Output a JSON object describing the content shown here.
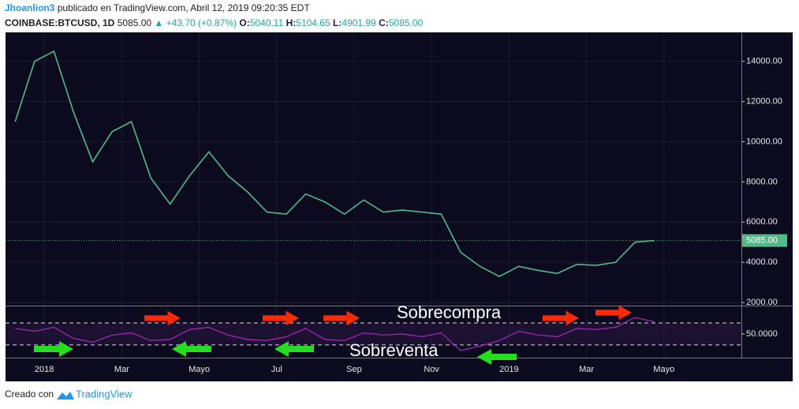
{
  "header": {
    "author": "Jhoanlion3",
    "published": "publicado en TradingView.com, Abril 12, 2019 09:20:35 EDT",
    "symbol": "COINBASE:BTCUSD, 1D",
    "price": "5085.00",
    "change": "+43.70 (+0.87%)",
    "ohlc": [
      {
        "label": "O:",
        "value": "5040.11"
      },
      {
        "label": "H:",
        "value": "5104.65"
      },
      {
        "label": "L:",
        "value": "4901.99"
      },
      {
        "label": "C:",
        "value": "5085.00"
      }
    ]
  },
  "annotations": [
    "Sobrecompra",
    "Sobreventa"
  ],
  "footer": {
    "text": "Creado con",
    "brand": "TradingView"
  },
  "chart_data": {
    "type": "line",
    "categories": [
      null,
      null,
      "2018",
      null,
      null,
      null,
      "Mar",
      null,
      null,
      null,
      "Mayo",
      null,
      null,
      null,
      "Jul",
      null,
      null,
      null,
      "Sep",
      null,
      null,
      null,
      "Nov",
      null,
      null,
      null,
      "2019",
      null,
      null,
      null,
      "Mar",
      null,
      null,
      null,
      "Mayo",
      null,
      null,
      null
    ],
    "series": [
      {
        "color": "#53b987",
        "values": [
          11000,
          14000,
          14500,
          11500,
          9000,
          10500,
          11000,
          8200,
          6900,
          8300,
          9500,
          8300,
          7500,
          6500,
          6400,
          7400,
          7000,
          6400,
          7100,
          6500,
          6600,
          6500,
          6400,
          4500,
          3800,
          3300,
          3800,
          3600,
          3450,
          3900,
          3850,
          4000,
          5000,
          5085,
          null,
          null,
          null,
          null
        ]
      }
    ],
    "ylim": [
      1850,
      15400
    ],
    "yticks": [
      {
        "value": 2000,
        "label": "2000.00"
      },
      {
        "value": 4000,
        "label": "4000.00"
      },
      {
        "value": 6000,
        "label": "6000.00"
      },
      {
        "value": 8000,
        "label": "8000.00"
      },
      {
        "value": 10000,
        "label": "10000.00"
      },
      {
        "value": 12000,
        "label": "12000.00"
      },
      {
        "value": 14000,
        "label": "14000.00"
      }
    ],
    "grid": true,
    "last_price": {
      "value": 5085,
      "label": "5085.00",
      "color": "#53b987"
    },
    "rsi": {
      "color": "#9c27b0",
      "values": [
        60,
        55,
        62,
        42,
        35,
        48,
        52,
        38,
        40,
        58,
        62,
        48,
        40,
        38,
        45,
        60,
        40,
        38,
        52,
        48,
        50,
        45,
        52,
        20,
        28,
        38,
        55,
        48,
        45,
        60,
        58,
        62,
        80,
        72,
        null,
        null,
        null,
        null
      ],
      "ylim": [
        7,
        100
      ],
      "yticks": [
        {
          "value": 50,
          "label": "50.0000"
        }
      ],
      "levels": [
        30,
        70
      ]
    }
  }
}
